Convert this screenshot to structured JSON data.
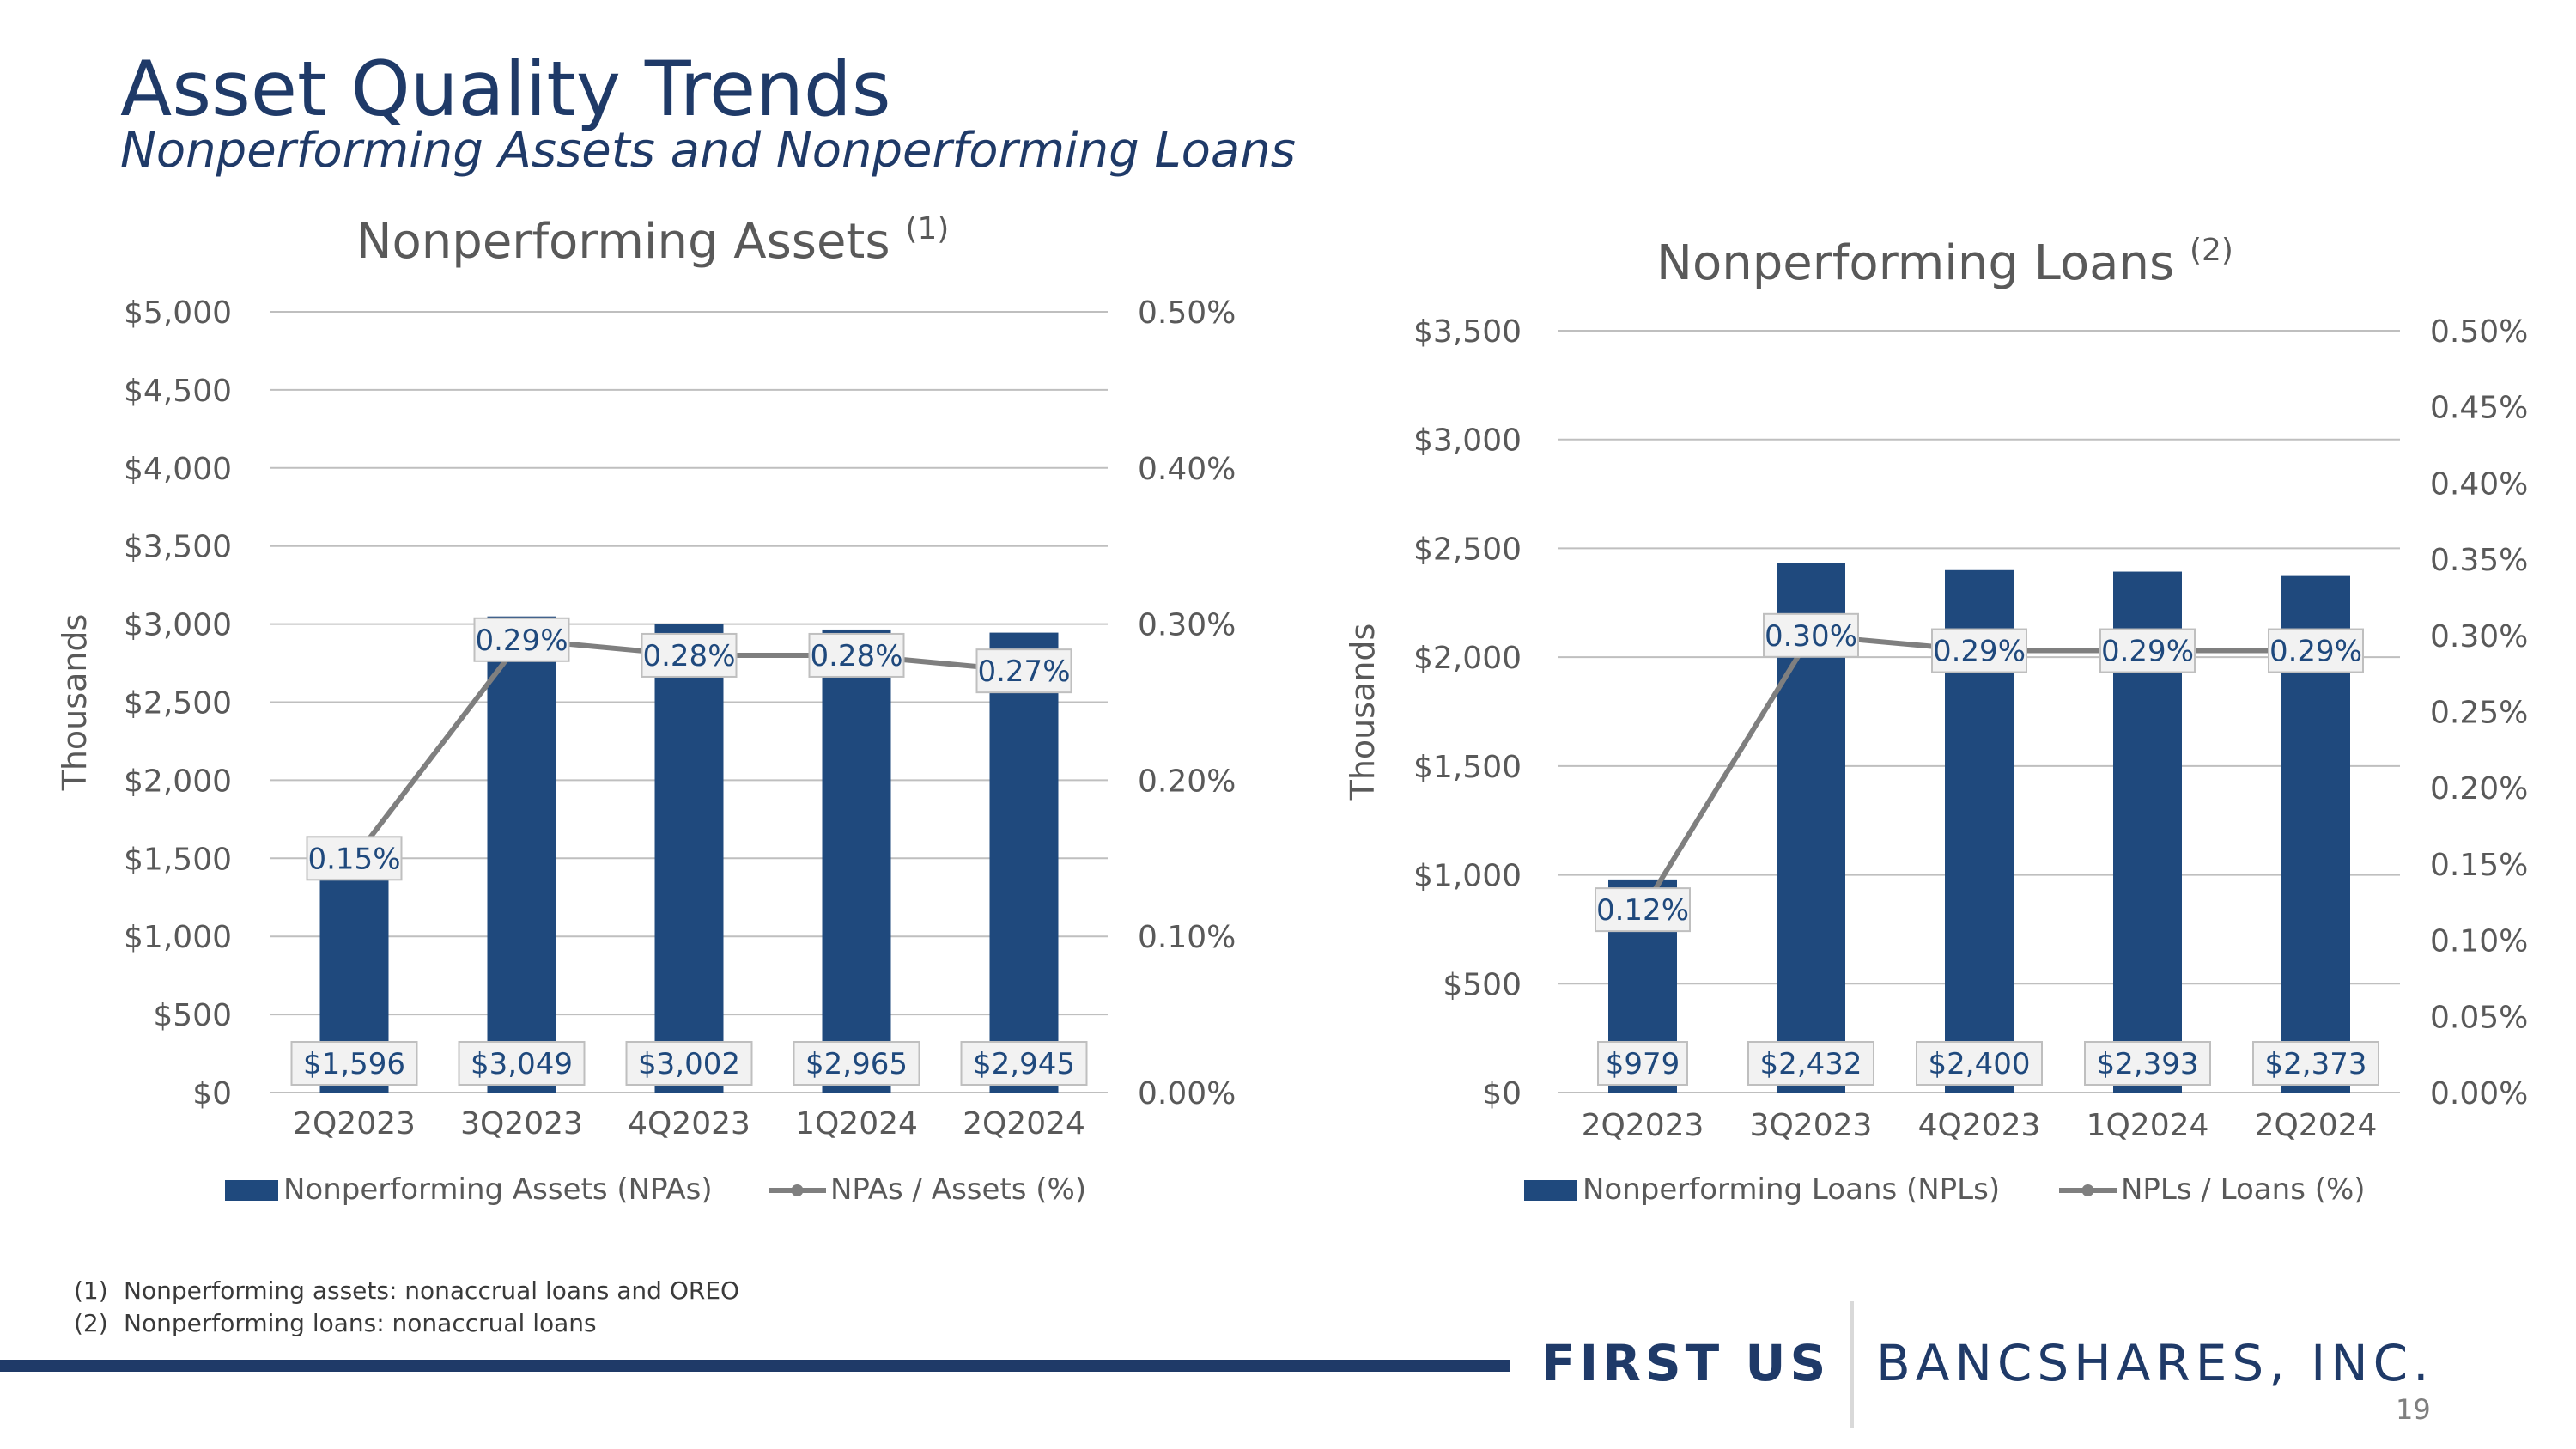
{
  "header": {
    "title": "Asset Quality Trends",
    "subtitle": "Nonperforming Assets and Nonperforming Loans"
  },
  "colors": {
    "bar": "#1f497d",
    "line": "#7f7f7f",
    "brand": "#1f3a68",
    "grid": "#bfbfbf",
    "axis_text": "#595959"
  },
  "chart_data": [
    {
      "type": "bar",
      "title": "Nonperforming Assets",
      "title_note": "(1)",
      "categories": [
        "2Q2023",
        "3Q2023",
        "4Q2023",
        "1Q2024",
        "2Q2024"
      ],
      "ylabel": "Thousands",
      "ylim": [
        0,
        5000
      ],
      "y_ticks": [
        0,
        500,
        1000,
        1500,
        2000,
        2500,
        3000,
        3500,
        4000,
        4500,
        5000
      ],
      "y_tick_labels": [
        "$0",
        "$500",
        "$1,000",
        "$1,500",
        "$2,000",
        "$2,500",
        "$3,000",
        "$3,500",
        "$4,000",
        "$4,500",
        "$5,000"
      ],
      "y2lim": [
        0,
        0.5
      ],
      "y2_ticks": [
        0,
        0.1,
        0.2,
        0.3,
        0.4,
        0.5
      ],
      "y2_tick_labels": [
        "0.00%",
        "0.10%",
        "0.20%",
        "0.30%",
        "0.40%",
        "0.50%"
      ],
      "grid": true,
      "legend_position": "bottom",
      "series": [
        {
          "name": "Nonperforming Assets (NPAs)",
          "kind": "bar",
          "axis": "left",
          "values": [
            1596,
            3049,
            3002,
            2965,
            2945
          ],
          "labels": [
            "$1,596",
            "$3,049",
            "$3,002",
            "$2,965",
            "$2,945"
          ]
        },
        {
          "name": "NPAs / Assets (%)",
          "kind": "line",
          "axis": "right",
          "values": [
            0.15,
            0.29,
            0.28,
            0.28,
            0.27
          ],
          "labels": [
            "0.15%",
            "0.29%",
            "0.28%",
            "0.28%",
            "0.27%"
          ]
        }
      ]
    },
    {
      "type": "bar",
      "title": "Nonperforming Loans",
      "title_note": "(2)",
      "categories": [
        "2Q2023",
        "3Q2023",
        "4Q2023",
        "1Q2024",
        "2Q2024"
      ],
      "ylabel": "Thousands",
      "ylim": [
        0,
        3500
      ],
      "y_ticks": [
        0,
        500,
        1000,
        1500,
        2000,
        2500,
        3000,
        3500
      ],
      "y_tick_labels": [
        "$0",
        "$500",
        "$1,000",
        "$1,500",
        "$2,000",
        "$2,500",
        "$3,000",
        "$3,500"
      ],
      "y2lim": [
        0,
        0.5
      ],
      "y2_ticks": [
        0,
        0.05,
        0.1,
        0.15,
        0.2,
        0.25,
        0.3,
        0.35,
        0.4,
        0.45,
        0.5
      ],
      "y2_tick_labels": [
        "0.00%",
        "0.05%",
        "0.10%",
        "0.15%",
        "0.20%",
        "0.25%",
        "0.30%",
        "0.35%",
        "0.40%",
        "0.45%",
        "0.50%"
      ],
      "grid": true,
      "legend_position": "bottom",
      "series": [
        {
          "name": "Nonperforming Loans (NPLs)",
          "kind": "bar",
          "axis": "left",
          "values": [
            979,
            2432,
            2400,
            2393,
            2373
          ],
          "labels": [
            "$979",
            "$2,432",
            "$2,400",
            "$2,393",
            "$2,373"
          ]
        },
        {
          "name": "NPLs / Loans (%)",
          "kind": "line",
          "axis": "right",
          "values": [
            0.12,
            0.3,
            0.29,
            0.29,
            0.29
          ],
          "labels": [
            "0.12%",
            "0.30%",
            "0.29%",
            "0.29%",
            "0.29%"
          ]
        }
      ]
    }
  ],
  "footnotes": [
    {
      "num": "(1)",
      "text": "Nonperforming assets: nonaccrual loans and OREO"
    },
    {
      "num": "(2)",
      "text": "Nonperforming loans: nonaccrual loans"
    }
  ],
  "logo": {
    "left": "FIRST US",
    "right": "BANCSHARES, INC."
  },
  "page_number": "19"
}
